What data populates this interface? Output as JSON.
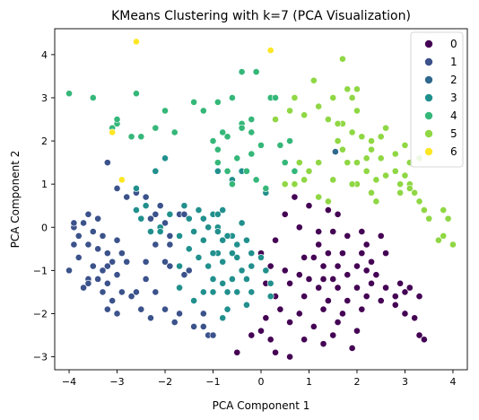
{
  "chart_data": {
    "type": "scatter",
    "title": "KMeans Clustering with k=7 (PCA Visualization)",
    "xlabel": "PCA Component 1",
    "ylabel": "PCA Component 2",
    "xlim": [
      -4.3,
      4.3
    ],
    "ylim": [
      -3.3,
      4.6
    ],
    "xticks": [
      -4,
      -3,
      -2,
      -1,
      0,
      1,
      2,
      3,
      4
    ],
    "yticks": [
      -3,
      -2,
      -1,
      0,
      1,
      2,
      3,
      4
    ],
    "grid": false,
    "legend_position": "top-right",
    "series": [
      {
        "name": "0",
        "color": "#440154",
        "points": [
          [
            0.7,
            0.7
          ],
          [
            1.0,
            0.5
          ],
          [
            1.4,
            0.4
          ],
          [
            1.6,
            0.3
          ],
          [
            0.8,
            0.0
          ],
          [
            1.2,
            -0.1
          ],
          [
            1.5,
            -0.1
          ],
          [
            1.8,
            -0.2
          ],
          [
            2.1,
            -0.1
          ],
          [
            2.5,
            -0.2
          ],
          [
            2.2,
            -0.4
          ],
          [
            1.2,
            -0.4
          ],
          [
            1.4,
            -0.6
          ],
          [
            1.7,
            -0.6
          ],
          [
            2.1,
            -0.6
          ],
          [
            2.6,
            -0.6
          ],
          [
            0.9,
            -0.7
          ],
          [
            1.3,
            -0.9
          ],
          [
            1.6,
            -0.9
          ],
          [
            2.0,
            -0.9
          ],
          [
            2.3,
            -0.8
          ],
          [
            0.2,
            -0.9
          ],
          [
            0.5,
            -1.0
          ],
          [
            0.8,
            -1.1
          ],
          [
            1.0,
            -1.2
          ],
          [
            1.3,
            -1.2
          ],
          [
            1.5,
            -1.2
          ],
          [
            1.8,
            -1.1
          ],
          [
            2.2,
            -1.0
          ],
          [
            2.4,
            -1.1
          ],
          [
            0.1,
            -1.3
          ],
          [
            0.6,
            -1.3
          ],
          [
            1.2,
            -1.4
          ],
          [
            1.6,
            -1.4
          ],
          [
            2.0,
            -1.4
          ],
          [
            2.3,
            -1.3
          ],
          [
            2.6,
            -1.4
          ],
          [
            2.9,
            -1.3
          ],
          [
            3.1,
            -1.4
          ],
          [
            0.3,
            -1.6
          ],
          [
            0.9,
            -1.6
          ],
          [
            1.4,
            -1.7
          ],
          [
            1.8,
            -1.7
          ],
          [
            2.2,
            -1.6
          ],
          [
            2.5,
            -1.7
          ],
          [
            2.8,
            -1.6
          ],
          [
            3.0,
            -1.5
          ],
          [
            3.3,
            -1.6
          ],
          [
            0.4,
            -1.9
          ],
          [
            0.8,
            -2.0
          ],
          [
            1.3,
            -1.9
          ],
          [
            1.7,
            -2.0
          ],
          [
            2.1,
            -1.9
          ],
          [
            2.8,
            -1.8
          ],
          [
            3.0,
            -2.0
          ],
          [
            3.2,
            -2.1
          ],
          [
            -0.3,
            -1.8
          ],
          [
            0.1,
            -2.1
          ],
          [
            0.6,
            -2.2
          ],
          [
            1.1,
            -2.3
          ],
          [
            1.6,
            -2.2
          ],
          [
            2.0,
            -2.4
          ],
          [
            3.3,
            -2.5
          ],
          [
            3.4,
            -2.6
          ],
          [
            -0.2,
            -2.5
          ],
          [
            0.2,
            -2.6
          ],
          [
            0.9,
            -2.6
          ],
          [
            1.3,
            -2.7
          ],
          [
            1.9,
            -2.8
          ],
          [
            -0.5,
            -2.9
          ],
          [
            0.3,
            -2.9
          ],
          [
            0.6,
            -3.0
          ],
          [
            0.0,
            -2.4
          ],
          [
            1.5,
            -2.5
          ],
          [
            0.5,
            0.3
          ],
          [
            0.3,
            -0.3
          ],
          [
            0.0,
            -0.6
          ],
          [
            1.1,
            -0.7
          ],
          [
            2.0,
            -1.4
          ]
        ]
      },
      {
        "name": "1",
        "color": "#3b528b",
        "points": [
          [
            -3.2,
            1.5
          ],
          [
            -3.0,
            0.9
          ],
          [
            -2.8,
            0.7
          ],
          [
            -3.6,
            0.3
          ],
          [
            -3.4,
            0.2
          ],
          [
            -3.7,
            0.1
          ],
          [
            -3.9,
            0.0
          ],
          [
            -3.5,
            -0.1
          ],
          [
            -3.8,
            -0.2
          ],
          [
            -3.3,
            -0.2
          ],
          [
            -3.0,
            -0.3
          ],
          [
            -3.9,
            -0.4
          ],
          [
            -3.6,
            -0.4
          ],
          [
            -3.4,
            -0.5
          ],
          [
            -3.2,
            -0.6
          ],
          [
            -2.9,
            -0.6
          ],
          [
            -3.8,
            -0.7
          ],
          [
            -3.1,
            -0.8
          ],
          [
            -2.8,
            -0.8
          ],
          [
            -3.5,
            -0.9
          ],
          [
            -3.3,
            -1.0
          ],
          [
            -4.0,
            -1.0
          ],
          [
            -3.0,
            -1.1
          ],
          [
            -3.6,
            -1.2
          ],
          [
            -3.4,
            -1.2
          ],
          [
            -3.2,
            -1.3
          ],
          [
            -3.7,
            -1.4
          ],
          [
            -3.3,
            -1.5
          ],
          [
            -2.9,
            -1.5
          ],
          [
            -3.1,
            -1.7
          ],
          [
            -3.2,
            -1.9
          ],
          [
            -3.0,
            -2.0
          ],
          [
            -2.6,
            -1.5
          ],
          [
            -2.4,
            -0.8
          ],
          [
            -2.4,
            -1.2
          ],
          [
            -2.2,
            -1.5
          ],
          [
            -2.2,
            0.3
          ],
          [
            -2.0,
            0.1
          ],
          [
            -1.9,
            -0.4
          ],
          [
            -2.0,
            -0.8
          ],
          [
            -1.9,
            -0.9
          ],
          [
            -1.6,
            -1.1
          ],
          [
            -1.5,
            -1.0
          ],
          [
            -2.4,
            0.7
          ],
          [
            -2.1,
            0.5
          ],
          [
            -2.6,
            0.8
          ],
          [
            -2.0,
            -1.9
          ],
          [
            -1.8,
            -2.2
          ],
          [
            -1.4,
            -2.3
          ],
          [
            -1.2,
            -2.3
          ],
          [
            -1.1,
            -2.5
          ],
          [
            -1.2,
            -2.0
          ],
          [
            -1.7,
            -2.0
          ],
          [
            -2.3,
            -2.1
          ],
          [
            -2.5,
            -1.9
          ],
          [
            -2.7,
            -1.6
          ],
          [
            -3.6,
            -1.3
          ],
          [
            -3.9,
            0.1
          ],
          [
            -3.2,
            -0.9
          ],
          [
            -1.7,
            0.3
          ],
          [
            -1.9,
            -0.2
          ],
          [
            -2.3,
            0.2
          ],
          [
            -1.6,
            0.3
          ],
          [
            -2.2,
            -0.4
          ],
          [
            -1.0,
            -2.5
          ]
        ]
      },
      {
        "name": "2",
        "color": "#31688e",
        "points": [
          [
            1.55,
            1.75
          ]
        ]
      },
      {
        "name": "3",
        "color": "#21908d",
        "points": [
          [
            -2.6,
            0.4
          ],
          [
            -2.5,
            0.2
          ],
          [
            -2.1,
            0.0
          ],
          [
            -1.7,
            -0.2
          ],
          [
            -1.6,
            0.5
          ],
          [
            -1.3,
            0.4
          ],
          [
            -1.0,
            0.3
          ],
          [
            -0.9,
            0.3
          ],
          [
            -0.8,
            0.4
          ],
          [
            -0.9,
            0.0
          ],
          [
            -1.2,
            -0.3
          ],
          [
            -1.5,
            -0.5
          ],
          [
            -1.3,
            -0.7
          ],
          [
            -1.1,
            -0.9
          ],
          [
            -0.9,
            -0.6
          ],
          [
            -0.8,
            -0.3
          ],
          [
            -0.6,
            -0.2
          ],
          [
            -0.5,
            -0.4
          ],
          [
            -0.3,
            -0.3
          ],
          [
            -0.2,
            -0.6
          ],
          [
            -0.6,
            -0.6
          ],
          [
            -0.8,
            -0.8
          ],
          [
            -1.0,
            -1.2
          ],
          [
            -0.8,
            -1.3
          ],
          [
            -0.6,
            -1.2
          ],
          [
            -0.4,
            -1.0
          ],
          [
            -0.5,
            -1.5
          ],
          [
            -0.3,
            -1.8
          ],
          [
            -0.7,
            -1.9
          ],
          [
            -0.8,
            -2.1
          ],
          [
            -1.4,
            -1.7
          ],
          [
            -1.7,
            -1.4
          ],
          [
            -1.2,
            -1.5
          ],
          [
            -1.0,
            -1.5
          ],
          [
            -0.2,
            -1.5
          ],
          [
            0.1,
            -1.0
          ],
          [
            0.0,
            -0.7
          ],
          [
            0.2,
            -1.3
          ],
          [
            0.2,
            -1.6
          ],
          [
            -2.4,
            0.5
          ],
          [
            -2.6,
            0.9
          ],
          [
            -2.2,
            1.3
          ],
          [
            -2.0,
            1.6
          ],
          [
            -1.9,
            0.3
          ],
          [
            -1.5,
            0.2
          ],
          [
            -1.2,
            0.2
          ],
          [
            -0.9,
            1.3
          ],
          [
            -0.6,
            1.1
          ],
          [
            -0.4,
            1.3
          ],
          [
            -0.7,
            -0.2
          ],
          [
            -0.4,
            0.1
          ],
          [
            -0.2,
            -0.9
          ],
          [
            -0.9,
            -0.1
          ],
          [
            -1.7,
            -0.9
          ],
          [
            -2.1,
            -0.1
          ],
          [
            -1.1,
            0.0
          ],
          [
            -0.5,
            -0.7
          ],
          [
            -0.3,
            -1.2
          ],
          [
            0.1,
            -1.0
          ],
          [
            0.1,
            0.8
          ],
          [
            -2.3,
            -0.1
          ],
          [
            -1.4,
            -0.1
          ],
          [
            -1.0,
            -0.6
          ],
          [
            -0.7,
            -1.5
          ]
        ]
      },
      {
        "name": "4",
        "color": "#35b779",
        "points": [
          [
            -4.0,
            3.1
          ],
          [
            -3.5,
            3.0
          ],
          [
            -2.6,
            3.1
          ],
          [
            -3.1,
            2.3
          ],
          [
            -3.0,
            2.4
          ],
          [
            -3.0,
            2.5
          ],
          [
            -2.7,
            2.1
          ],
          [
            -2.5,
            2.1
          ],
          [
            -2.2,
            2.3
          ],
          [
            -2.0,
            2.7
          ],
          [
            -1.8,
            2.2
          ],
          [
            -1.4,
            2.9
          ],
          [
            -1.2,
            2.7
          ],
          [
            -0.9,
            2.9
          ],
          [
            -0.6,
            3.0
          ],
          [
            -0.4,
            3.6
          ],
          [
            -0.1,
            3.6
          ],
          [
            0.2,
            3.0
          ],
          [
            0.3,
            3.0
          ],
          [
            -0.4,
            2.4
          ],
          [
            -0.8,
            2.2
          ],
          [
            -1.0,
            2.0
          ],
          [
            -0.9,
            1.8
          ],
          [
            -0.7,
            2.1
          ],
          [
            -0.4,
            2.3
          ],
          [
            -0.2,
            2.2
          ],
          [
            0.0,
            1.9
          ],
          [
            -0.2,
            1.7
          ],
          [
            -0.5,
            1.6
          ],
          [
            -0.9,
            1.5
          ],
          [
            -0.7,
            1.3
          ],
          [
            -0.6,
            1.0
          ],
          [
            -0.3,
            1.3
          ],
          [
            -0.1,
            1.1
          ],
          [
            -2.9,
            1.1
          ],
          [
            0.1,
            0.9
          ],
          [
            0.5,
            1.5
          ],
          [
            0.7,
            1.3
          ],
          [
            0.4,
            1.9
          ],
          [
            -0.2,
            2.5
          ],
          [
            0.6,
            2.0
          ]
        ]
      },
      {
        "name": "5",
        "color": "#8fd744",
        "points": [
          [
            0.3,
            2.5
          ],
          [
            0.6,
            2.7
          ],
          [
            0.7,
            3.0
          ],
          [
            0.9,
            2.6
          ],
          [
            1.1,
            3.4
          ],
          [
            1.2,
            2.8
          ],
          [
            1.4,
            2.5
          ],
          [
            1.5,
            3.0
          ],
          [
            1.7,
            3.9
          ],
          [
            1.8,
            3.2
          ],
          [
            1.9,
            3.0
          ],
          [
            2.0,
            2.7
          ],
          [
            2.0,
            3.2
          ],
          [
            1.7,
            2.4
          ],
          [
            1.9,
            2.2
          ],
          [
            2.1,
            2.1
          ],
          [
            2.3,
            2.0
          ],
          [
            2.5,
            2.1
          ],
          [
            2.6,
            2.3
          ],
          [
            2.3,
            1.8
          ],
          [
            1.7,
            1.8
          ],
          [
            1.6,
            2.0
          ],
          [
            1.6,
            2.4
          ],
          [
            1.8,
            1.5
          ],
          [
            2.0,
            1.5
          ],
          [
            2.2,
            1.3
          ],
          [
            2.4,
            1.1
          ],
          [
            2.6,
            1.2
          ],
          [
            2.8,
            1.3
          ],
          [
            3.0,
            1.2
          ],
          [
            3.1,
            1.5
          ],
          [
            2.8,
            1.7
          ],
          [
            2.5,
            1.6
          ],
          [
            2.2,
            1.6
          ],
          [
            1.5,
            1.1
          ],
          [
            1.4,
            0.6
          ],
          [
            1.2,
            1.5
          ],
          [
            1.0,
            1.3
          ],
          [
            0.8,
            1.5
          ],
          [
            0.5,
            1.0
          ],
          [
            0.7,
            1.0
          ],
          [
            2.0,
            1.0
          ],
          [
            2.3,
            0.8
          ],
          [
            2.4,
            0.6
          ],
          [
            2.9,
            1.0
          ],
          [
            3.1,
            1.0
          ],
          [
            3.0,
            1.9
          ],
          [
            3.3,
            1.6
          ],
          [
            3.2,
            0.8
          ],
          [
            3.3,
            0.6
          ],
          [
            3.4,
            0.4
          ],
          [
            3.8,
            0.4
          ],
          [
            3.9,
            0.2
          ],
          [
            4.0,
            -0.4
          ],
          [
            3.8,
            -0.2
          ],
          [
            3.7,
            -0.3
          ],
          [
            3.1,
            0.9
          ],
          [
            2.9,
            0.8
          ],
          [
            3.5,
            0.2
          ],
          [
            1.9,
            1.0
          ],
          [
            0.9,
            1.1
          ],
          [
            1.2,
            0.7
          ]
        ]
      },
      {
        "name": "6",
        "color": "#fde725",
        "points": [
          [
            -2.6,
            4.3
          ],
          [
            0.2,
            4.1
          ],
          [
            -3.1,
            2.2
          ],
          [
            -2.9,
            1.1
          ]
        ]
      }
    ]
  }
}
